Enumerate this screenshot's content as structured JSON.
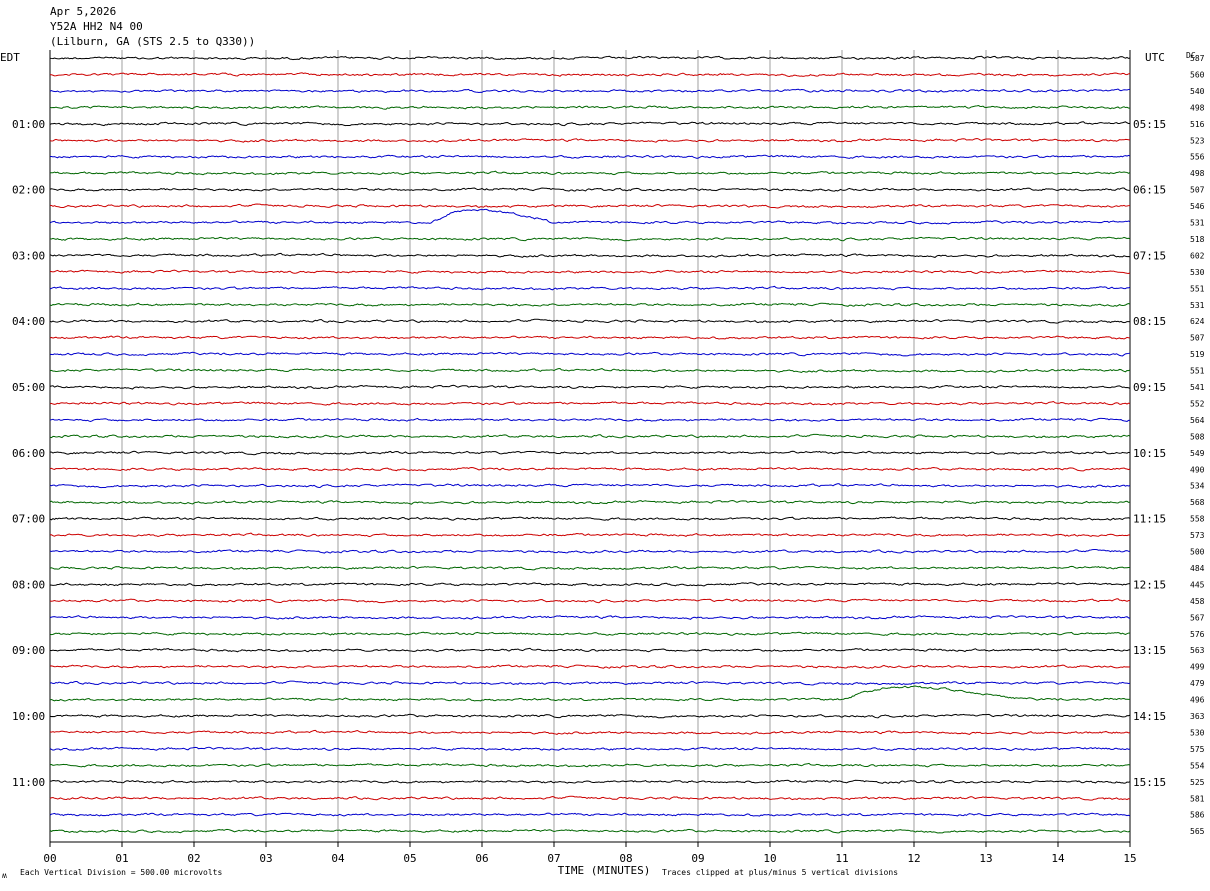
{
  "header": {
    "date": "Apr 5,2026",
    "station": "Y52A HH2 N4 00",
    "location": "(Lilburn, GA (STS 2.5 to Q330))"
  },
  "left_tz": "EDT",
  "right_tz": "UTC",
  "dc_label": "DC",
  "footer": {
    "scale_note": "Each Vertical Division =  500.00 microvolts",
    "clip_note": "Traces clipped at plus/minus 5 vertical divisions",
    "corner_mark": "ʍ"
  },
  "colors": {
    "cycle": [
      "#000000",
      "#cc0000",
      "#0000cc",
      "#006600"
    ],
    "grid": "#888888",
    "border": "#000000"
  },
  "chart_data": {
    "type": "line",
    "xlabel": "TIME (MINUTES)",
    "xlim": [
      0,
      15
    ],
    "x_ticks": [
      "00",
      "01",
      "02",
      "03",
      "04",
      "05",
      "06",
      "07",
      "08",
      "09",
      "10",
      "11",
      "12",
      "13",
      "14",
      "15"
    ],
    "trace_count": 48,
    "trace_interval_minutes": 15,
    "left_hour_labels": [
      {
        "trace": 4,
        "label": "01:00"
      },
      {
        "trace": 8,
        "label": "02:00"
      },
      {
        "trace": 12,
        "label": "03:00"
      },
      {
        "trace": 16,
        "label": "04:00"
      },
      {
        "trace": 20,
        "label": "05:00"
      },
      {
        "trace": 24,
        "label": "06:00"
      },
      {
        "trace": 28,
        "label": "07:00"
      },
      {
        "trace": 32,
        "label": "08:00"
      },
      {
        "trace": 36,
        "label": "09:00"
      },
      {
        "trace": 40,
        "label": "10:00"
      },
      {
        "trace": 44,
        "label": "11:00"
      }
    ],
    "right_hour_labels": [
      {
        "trace": 4,
        "label": "05:15"
      },
      {
        "trace": 8,
        "label": "06:15"
      },
      {
        "trace": 12,
        "label": "07:15"
      },
      {
        "trace": 16,
        "label": "08:15"
      },
      {
        "trace": 20,
        "label": "09:15"
      },
      {
        "trace": 24,
        "label": "10:15"
      },
      {
        "trace": 28,
        "label": "11:15"
      },
      {
        "trace": 32,
        "label": "12:15"
      },
      {
        "trace": 36,
        "label": "13:15"
      },
      {
        "trace": 40,
        "label": "14:15"
      },
      {
        "trace": 44,
        "label": "15:15"
      }
    ],
    "dc_values": [
      "587",
      "560",
      "540",
      "498",
      "516",
      "523",
      "556",
      "498",
      "507",
      "546",
      "531",
      "518",
      "602",
      "530",
      "551",
      "531",
      "624",
      "507",
      "519",
      "551",
      "541",
      "552",
      "564",
      "508",
      "549",
      "490",
      "534",
      "568",
      "558",
      "573",
      "500",
      "484",
      "445",
      "458",
      "567",
      "576",
      "563",
      "499",
      "479",
      "496",
      "363",
      "530",
      "575",
      "554",
      "525",
      "581",
      "586",
      "565"
    ],
    "events": [
      {
        "trace": 10,
        "start_min": 5.3,
        "peak_min": 5.8,
        "end_min": 7.0,
        "amplitude_div": 0.8
      },
      {
        "trace": 39,
        "start_min": 11.0,
        "peak_min": 11.8,
        "end_min": 13.5,
        "amplitude_div": 0.8
      }
    ],
    "grid": true
  }
}
